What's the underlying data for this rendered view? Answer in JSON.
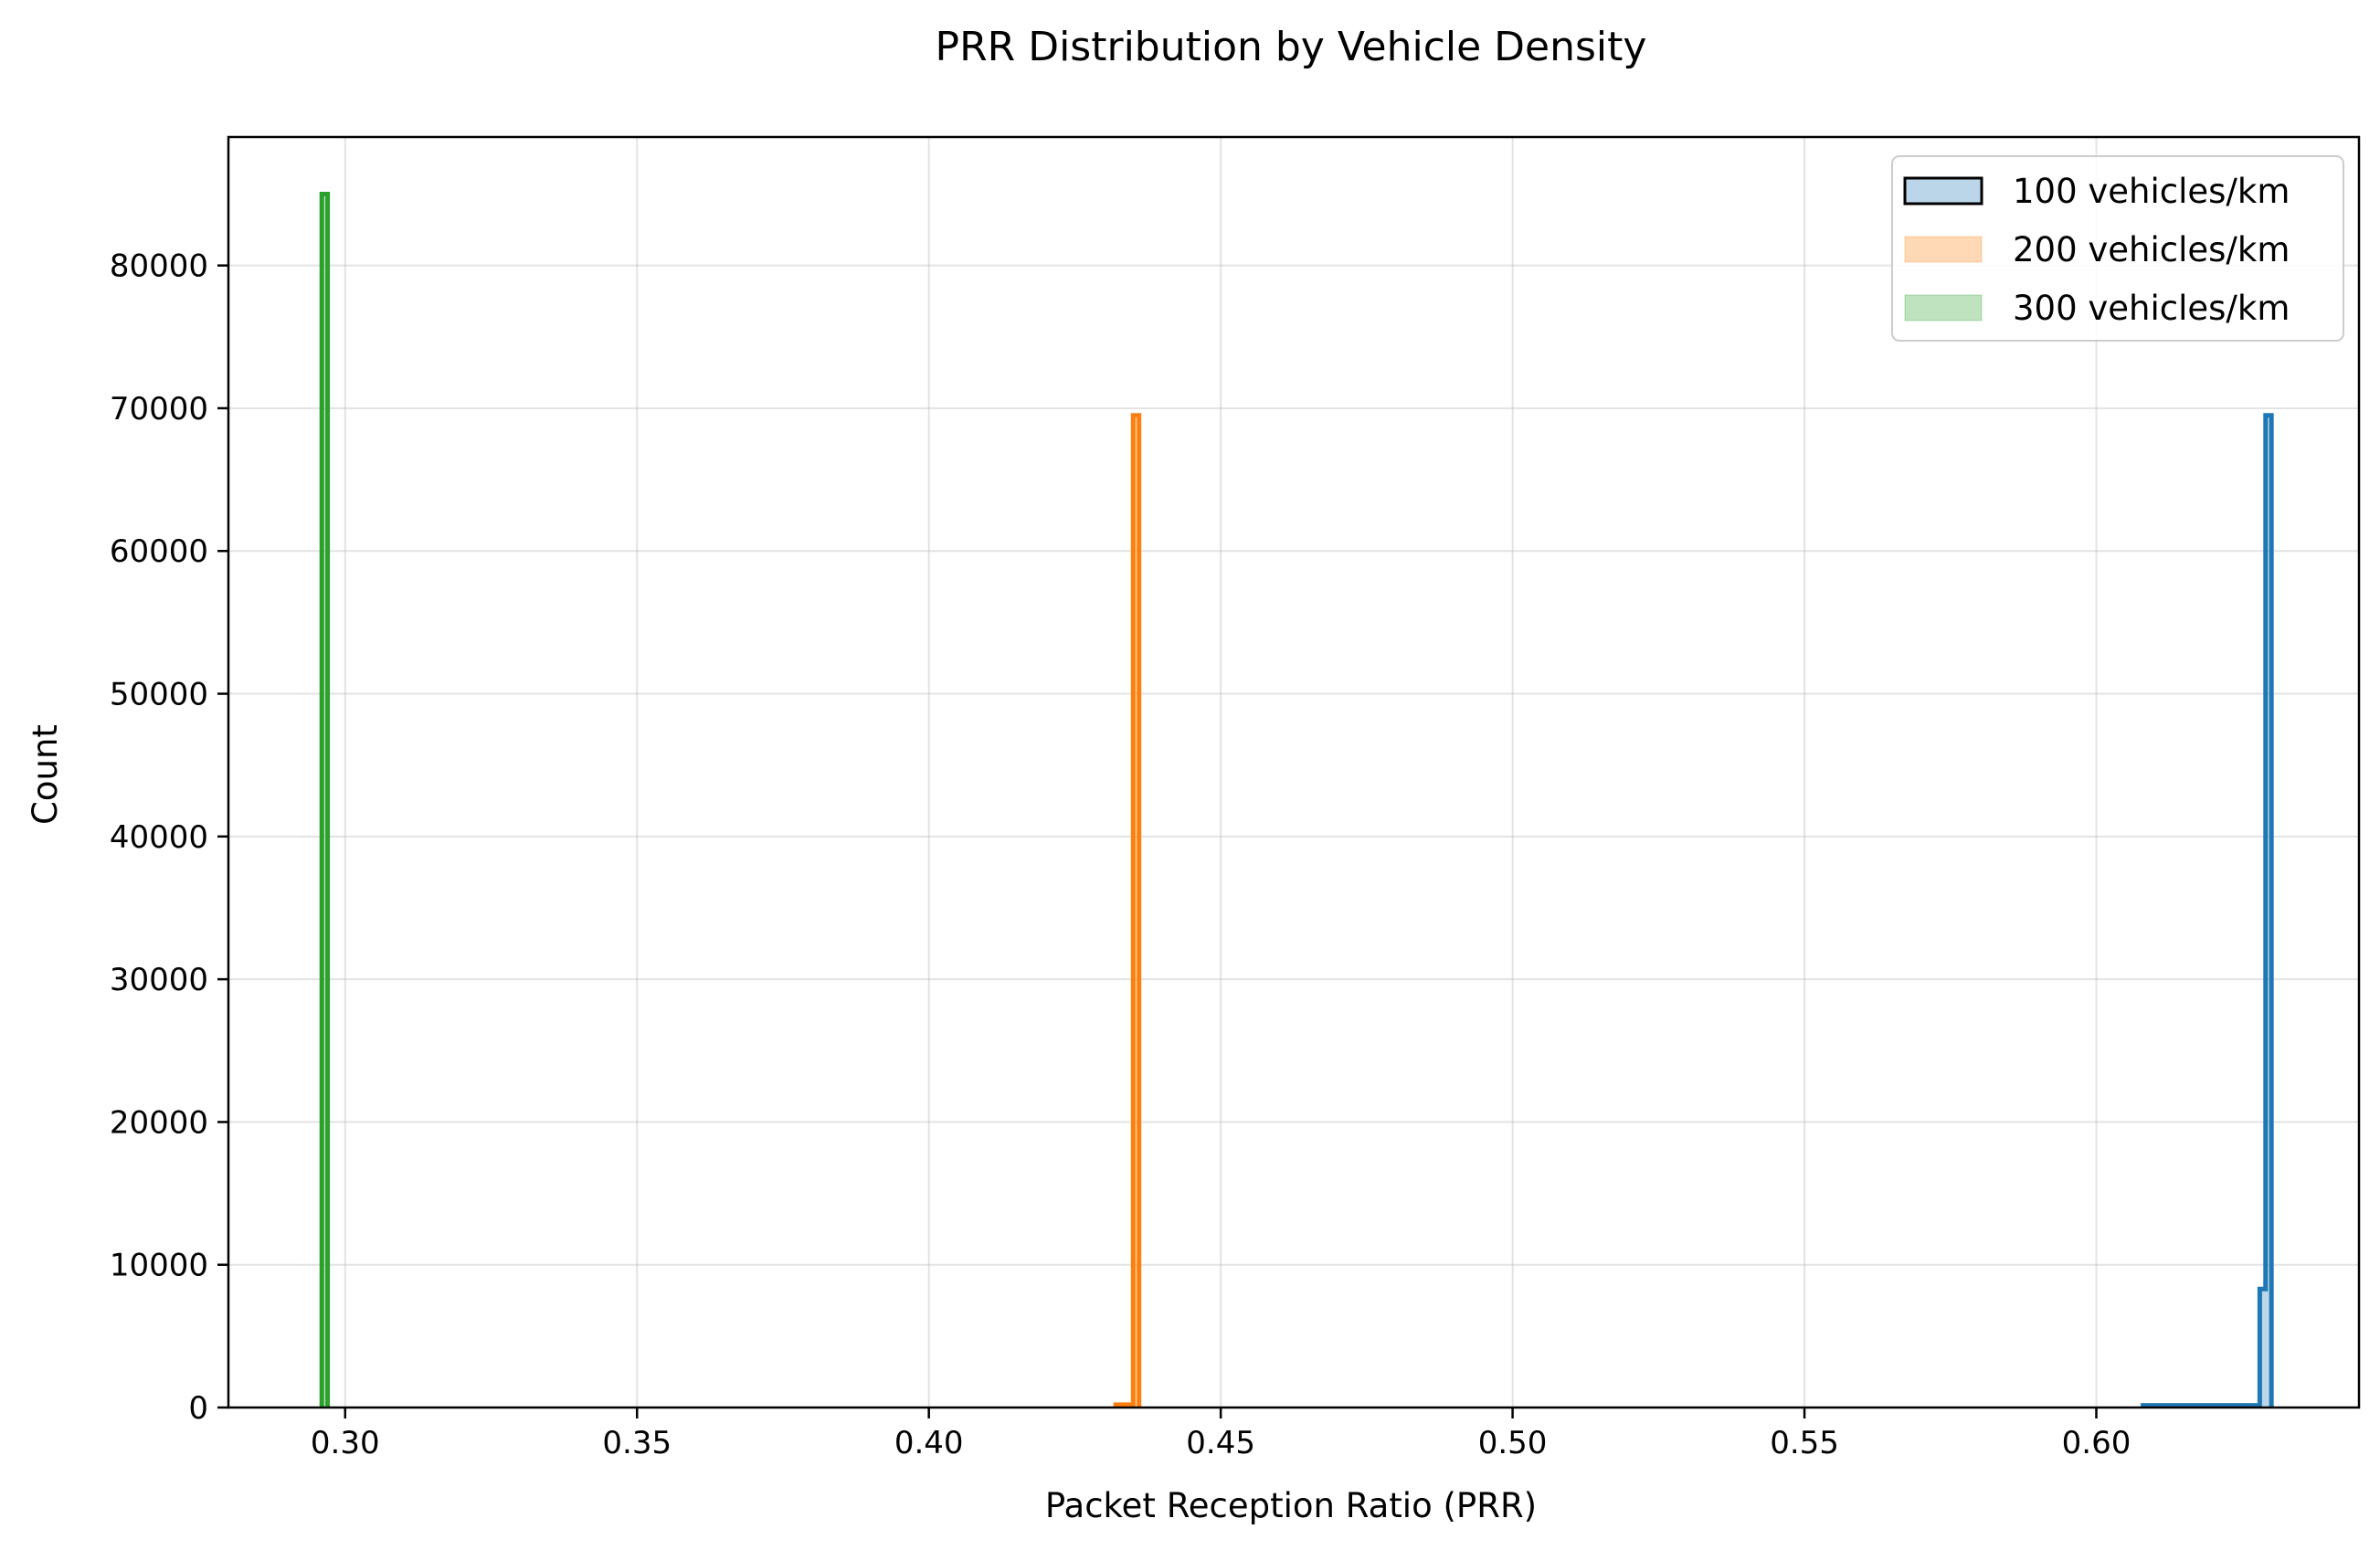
{
  "chart_data": {
    "type": "histogram",
    "title": "PRR Distribution by Vehicle Density",
    "xlabel": "Packet Reception Ratio (PRR)",
    "ylabel": "Count",
    "xlim": [
      0.28,
      0.645
    ],
    "ylim": [
      0,
      89000
    ],
    "xticks": [
      0.3,
      0.35,
      0.4,
      0.45,
      0.5,
      0.55,
      0.6
    ],
    "xtick_labels": [
      "0.30",
      "0.35",
      "0.40",
      "0.45",
      "0.50",
      "0.55",
      "0.60"
    ],
    "yticks": [
      0,
      10000,
      20000,
      30000,
      40000,
      50000,
      60000,
      70000,
      80000
    ],
    "ytick_labels": [
      "0",
      "10000",
      "20000",
      "30000",
      "40000",
      "50000",
      "60000",
      "70000",
      "80000"
    ],
    "grid": true,
    "legend_position": "top-right",
    "series": [
      {
        "name": "100 vehicles/km",
        "color": "#1f77b4",
        "bins": [
          {
            "x0": 0.608,
            "x1": 0.628,
            "count": 150
          },
          {
            "x0": 0.628,
            "x1": 0.629,
            "count": 8300
          },
          {
            "x0": 0.629,
            "x1": 0.63,
            "count": 69500
          }
        ]
      },
      {
        "name": "200 vehicles/km",
        "color": "#ff7f0e",
        "bins": [
          {
            "x0": 0.432,
            "x1": 0.435,
            "count": 200
          },
          {
            "x0": 0.435,
            "x1": 0.436,
            "count": 69500
          }
        ]
      },
      {
        "name": "300 vehicles/km",
        "color": "#2ca02c",
        "bins": [
          {
            "x0": 0.296,
            "x1": 0.297,
            "count": 85000
          }
        ]
      }
    ]
  }
}
